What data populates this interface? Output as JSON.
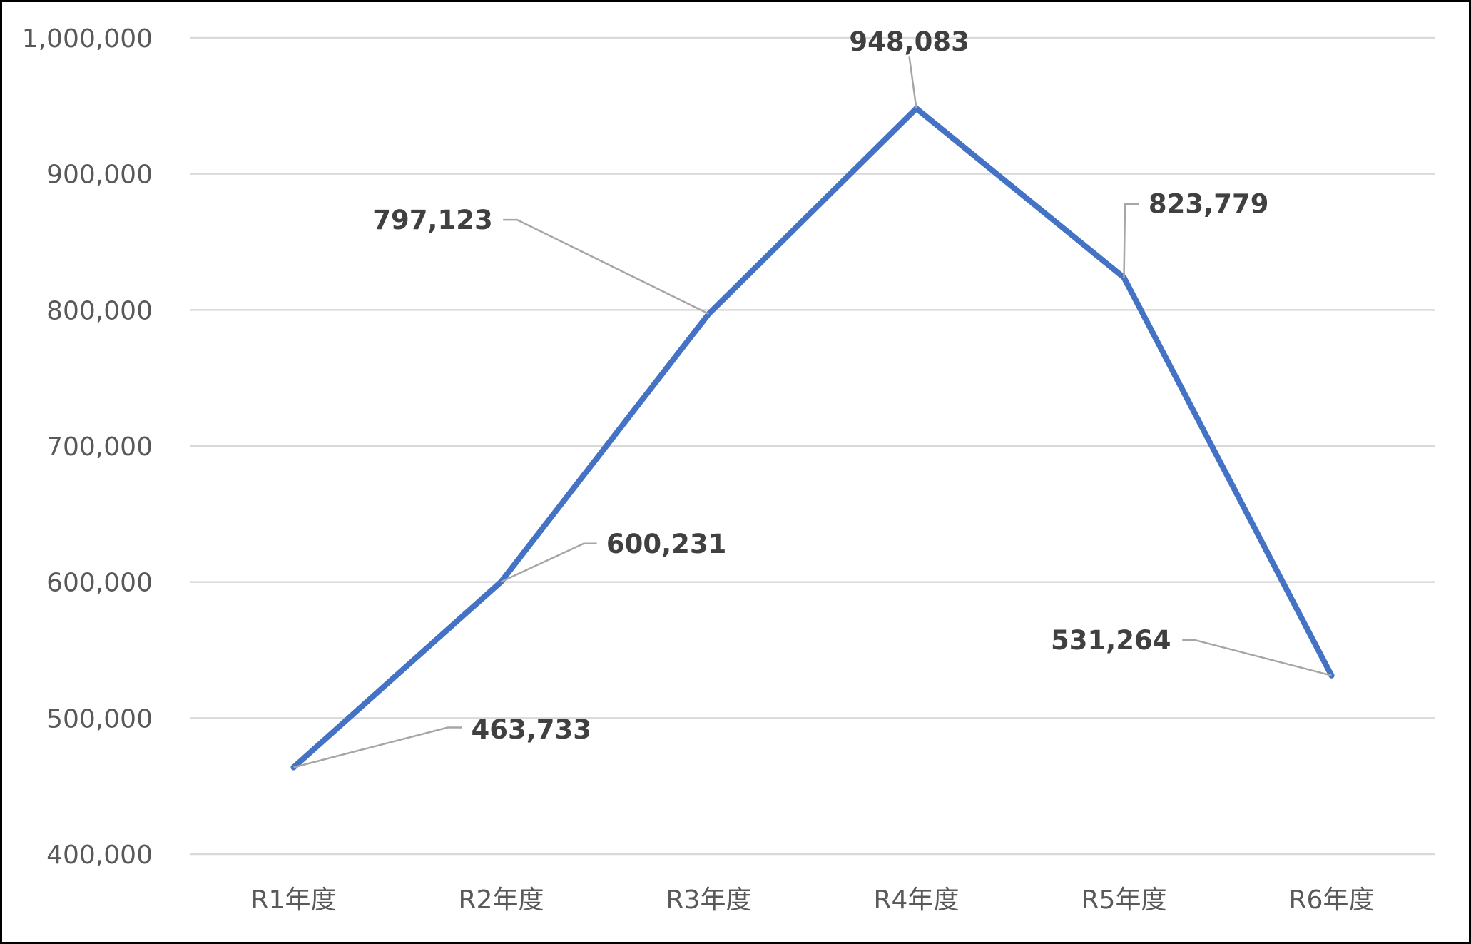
{
  "chart_data": {
    "type": "line",
    "title": "",
    "xlabel": "",
    "ylabel": "",
    "categories": [
      "R1年度",
      "R2年度",
      "R3年度",
      "R4年度",
      "R5年度",
      "R6年度"
    ],
    "series": [
      {
        "values": [
          463733,
          600231,
          797123,
          948083,
          823779,
          531264
        ],
        "color": "#4472C4"
      }
    ],
    "data_labels": [
      "463,733",
      "600,231",
      "797,123",
      "948,083",
      "823,779",
      "531,264"
    ],
    "ylim": [
      400000,
      1000000
    ],
    "yticks": [
      400000,
      500000,
      600000,
      700000,
      800000,
      900000,
      1000000
    ],
    "ytick_labels": [
      "400,000",
      "500,000",
      "600,000",
      "700,000",
      "800,000",
      "900,000",
      "1,000,000"
    ],
    "grid": true,
    "legend": "none",
    "gridline_color": "#D9D9D9",
    "leader_line_color": "#A6A6A6"
  }
}
